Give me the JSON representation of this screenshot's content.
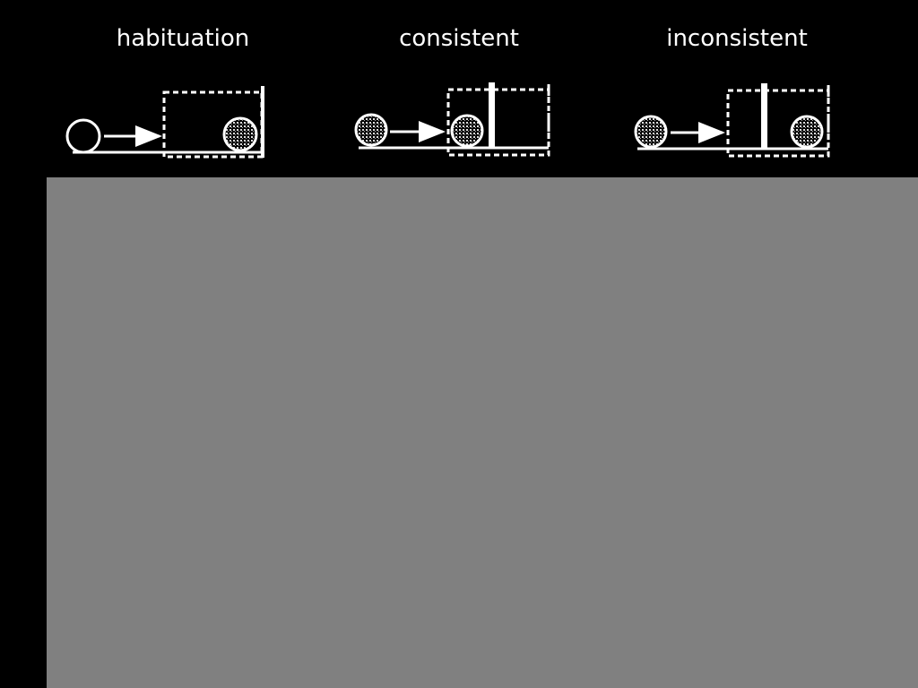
{
  "panels": [
    {
      "label": "habituation",
      "icon": "ball-rolls-behind-screen-no-wall"
    },
    {
      "label": "consistent",
      "icon": "ball-stops-before-wall"
    },
    {
      "label": "inconsistent",
      "icon": "ball-appears-beyond-wall"
    }
  ],
  "colors": {
    "background": "#000000",
    "drawing": "#ffffff",
    "content_area": "#808080"
  }
}
